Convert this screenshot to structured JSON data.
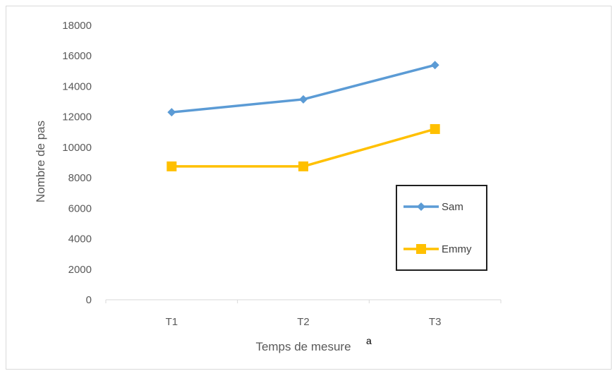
{
  "chart_data": {
    "type": "line",
    "title": "",
    "xlabel": "Temps de mesure",
    "xlabel_superscript": "a",
    "ylabel": "Nombre de pas",
    "categories": [
      "T1",
      "T2",
      "T3"
    ],
    "ylim": [
      0,
      18000
    ],
    "yticks": [
      0,
      2000,
      4000,
      6000,
      8000,
      10000,
      12000,
      14000,
      16000,
      18000
    ],
    "grid": false,
    "legend_position": "right",
    "series": [
      {
        "name": "Sam",
        "values": [
          12300,
          13150,
          15400
        ],
        "color": "#5b9bd5",
        "marker": "diamond"
      },
      {
        "name": "Emmy",
        "values": [
          8750,
          8750,
          11200
        ],
        "color": "#ffc000",
        "marker": "square"
      }
    ]
  }
}
